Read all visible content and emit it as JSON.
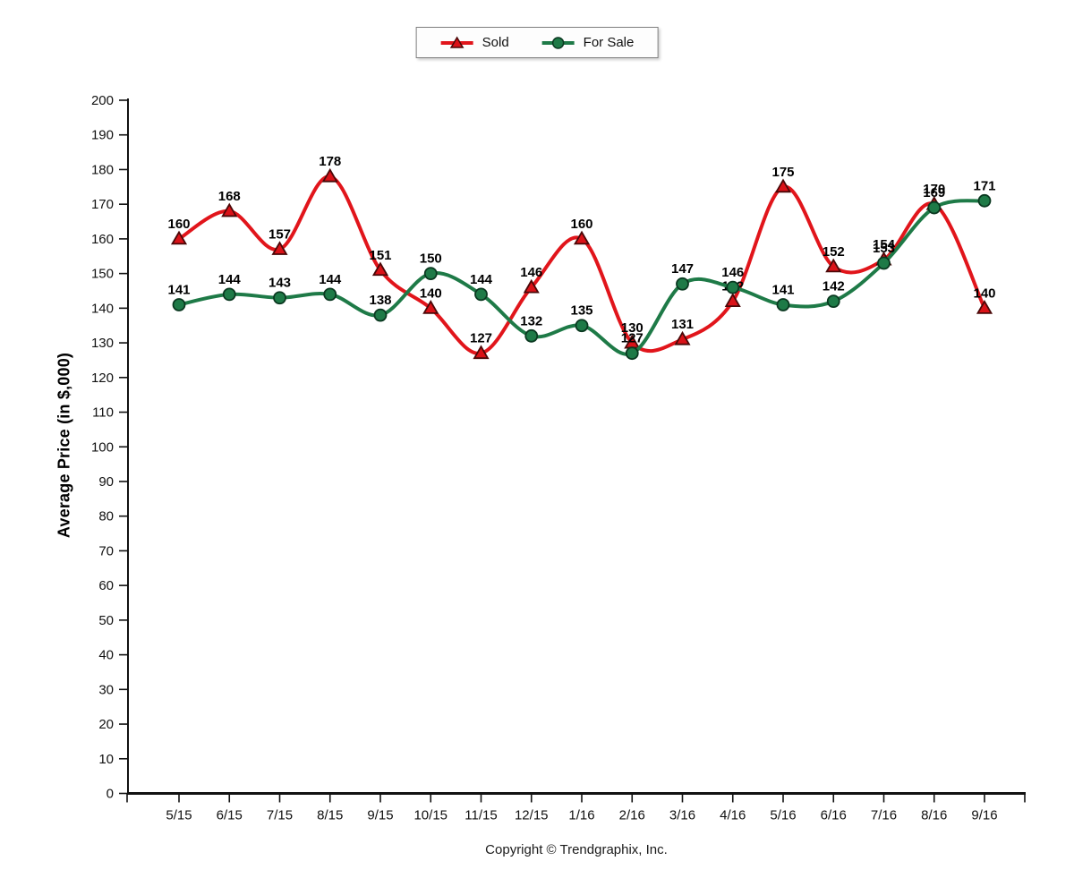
{
  "chart_data": {
    "type": "line",
    "title": "",
    "xlabel": "",
    "ylabel": "Average Price (in $,000)",
    "categories": [
      "5/15",
      "6/15",
      "7/15",
      "8/15",
      "9/15",
      "10/15",
      "11/15",
      "12/15",
      "1/16",
      "2/16",
      "3/16",
      "4/16",
      "5/16",
      "6/16",
      "7/16",
      "8/16",
      "9/16"
    ],
    "series": [
      {
        "name": "Sold",
        "marker": "triangle",
        "color": "#e1151b",
        "marker_fill": "#da1218",
        "marker_stroke": "#4a0808",
        "values": [
          160,
          168,
          157,
          178,
          151,
          140,
          127,
          146,
          160,
          130,
          131,
          142,
          175,
          152,
          154,
          170,
          140
        ]
      },
      {
        "name": "For Sale",
        "marker": "circle",
        "color": "#1e7a47",
        "marker_fill": "#1e7a47",
        "marker_stroke": "#0a3820",
        "values": [
          141,
          144,
          143,
          144,
          138,
          150,
          144,
          132,
          135,
          127,
          147,
          146,
          141,
          142,
          153,
          169,
          171
        ]
      }
    ],
    "ylim": [
      0,
      200
    ],
    "ytick_step": 10,
    "grid": false,
    "legend_position": "top-center",
    "label_color": "#000000",
    "axis_color": "#111111"
  },
  "footer": {
    "copyright": "Copyright © Trendgraphix, Inc."
  }
}
